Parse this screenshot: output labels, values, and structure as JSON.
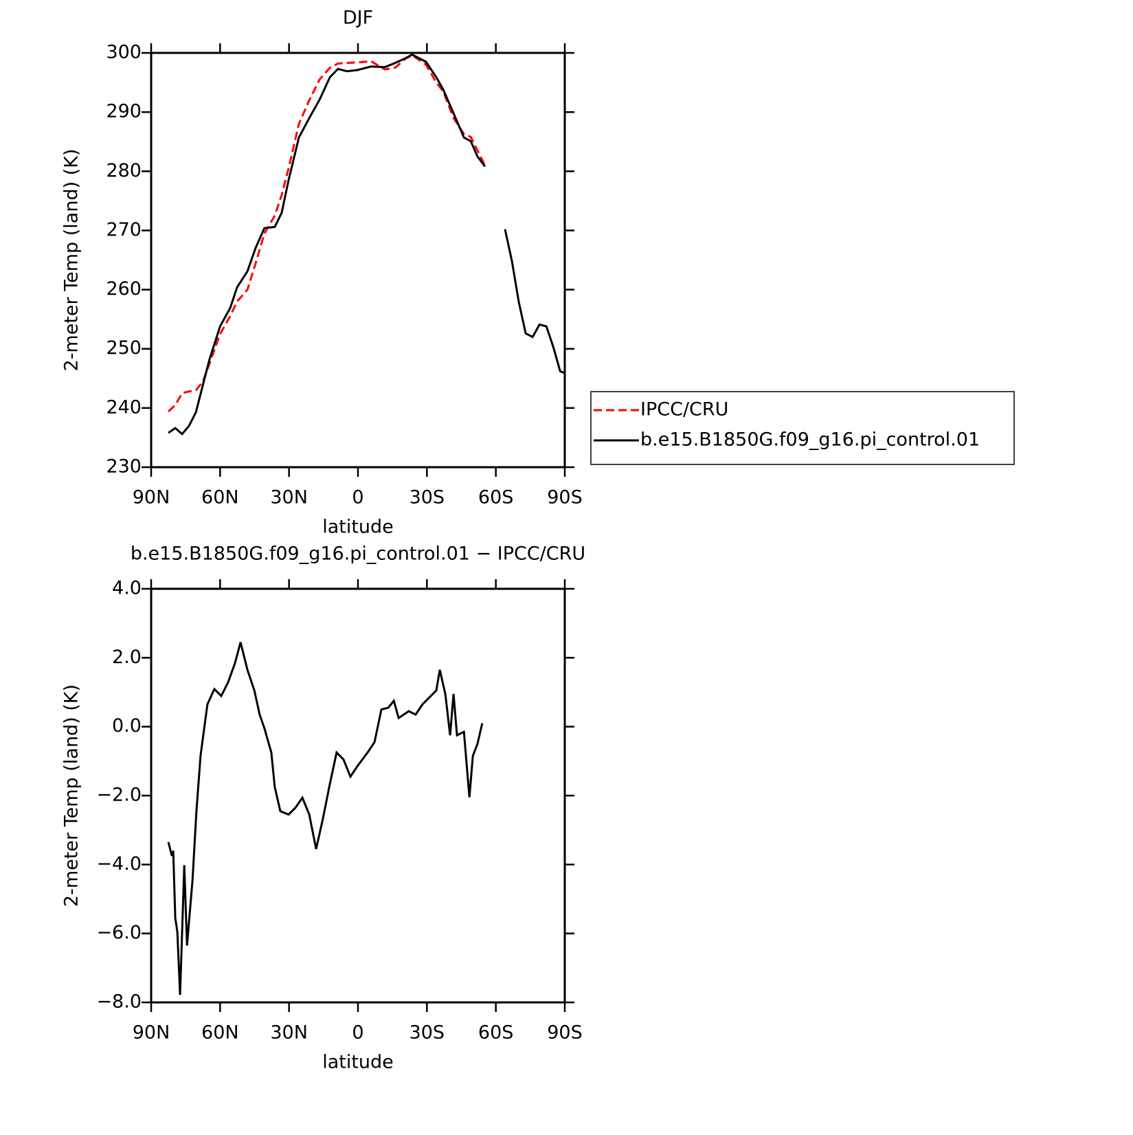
{
  "chart_data": [
    {
      "type": "line",
      "title": "DJF",
      "x_label": "latitude",
      "y_label": "2-meter Temp (land) (K)",
      "x": [
        82.5,
        79.5,
        76.5,
        73.5,
        70.5,
        67.5,
        64.6,
        60,
        55.6,
        52.6,
        48.1,
        44.5,
        40.7,
        36.2,
        33.2,
        30.2,
        25.7,
        21.2,
        16.7,
        12.2,
        8.7,
        4.8,
        0.3,
        -5.7,
        -11.7,
        -16.2,
        -20.6,
        -23.6,
        -29.6,
        -34.1,
        -37.1,
        -41.6,
        -46.1,
        -49.1,
        -52,
        -55.3,
        -60,
        -64,
        -67,
        -70,
        -73,
        -76,
        -79,
        -82,
        -85,
        -88,
        -90
      ],
      "series": [
        {
          "name": "IPCC/CRU",
          "color": "#ff0000",
          "line_style": "dashed",
          "values": [
            239.4,
            240.5,
            242.5,
            242.8,
            243.0,
            244.5,
            247.5,
            252.5,
            255.5,
            258,
            260,
            264.5,
            269.5,
            272.5,
            276,
            280.5,
            288,
            292,
            295.5,
            297.5,
            298.2,
            298.3,
            298.4,
            298.6,
            297.2,
            297.5,
            299.0,
            299.6,
            298.0,
            295.0,
            293.5,
            289.0,
            286.3,
            285.8,
            283.5,
            281.0,
            null,
            null,
            null,
            null,
            null,
            null,
            null,
            null,
            null,
            null,
            null
          ]
        },
        {
          "name": "b.e15.B1850G.f09_g16.pi_control.01",
          "color": "#000000",
          "line_style": "solid",
          "values": [
            235.8,
            236.6,
            235.6,
            237,
            239.3,
            243.9,
            248.2,
            253.8,
            256.9,
            260.4,
            263.1,
            267.1,
            270.4,
            270.6,
            273,
            278.5,
            285.7,
            289,
            292.1,
            295.9,
            297.3,
            296.9,
            297.1,
            297.7,
            297.6,
            298.3,
            299.1,
            299.7,
            298.5,
            295.9,
            293.8,
            289.8,
            285.7,
            285.1,
            282.5,
            280.8,
            null,
            270.2,
            264.8,
            257.9,
            252.6,
            252,
            254.1,
            253.8,
            250.3,
            246.2,
            245.9
          ]
        }
      ],
      "xlim": [
        90,
        -90
      ],
      "xticks": [
        {
          "value": 90,
          "label": "90N"
        },
        {
          "value": 60,
          "label": "60N"
        },
        {
          "value": 30,
          "label": "30N"
        },
        0,
        {
          "value": -30,
          "label": "30S"
        },
        {
          "value": -60,
          "label": "60S"
        },
        {
          "value": -90,
          "label": "90S"
        }
      ],
      "ylim": [
        230,
        300
      ],
      "yticks": [
        230,
        240,
        250,
        260,
        270,
        280,
        290,
        300
      ],
      "legend": "outside-right"
    },
    {
      "type": "line",
      "title": "b.e15.B1850G.f09_g16.pi_control.01 − IPCC/CRU",
      "x_label": "latitude",
      "y_label": "2-meter Temp (land) (K)",
      "x": [
        82.5,
        81,
        80.4,
        79.5,
        78.6,
        77.4,
        75.6,
        74.4,
        72,
        70.3,
        68.5,
        65.5,
        62.5,
        59.5,
        56.5,
        53.5,
        51.1,
        48.1,
        45.1,
        42.8,
        40.7,
        37.7,
        36.2,
        33.8,
        30.2,
        27.2,
        24.2,
        21.2,
        18.2,
        15.2,
        12.2,
        9.3,
        6.3,
        3.3,
        0.3,
        -4.2,
        -7.2,
        -10.2,
        -13.2,
        -15.6,
        -17.7,
        -22.1,
        -25.1,
        -28.1,
        -31.1,
        -34.1,
        -35.6,
        -38,
        -40.1,
        -41.6,
        -43.1,
        -46.1,
        -48.5,
        -50,
        -52,
        -54.1
      ],
      "series": [
        {
          "name": "b.e15.B1850G.f09_g16.pi_control.01 − IPCC/CRU",
          "color": "#000000",
          "line_style": "solid",
          "values": [
            -3.35,
            -3.75,
            -3.6,
            -5.55,
            -5.95,
            -7.78,
            -4.02,
            -6.35,
            -4.45,
            -2.45,
            -0.84,
            0.65,
            1.09,
            0.89,
            1.29,
            1.85,
            2.45,
            1.65,
            1.05,
            0.35,
            -0.05,
            -0.75,
            -1.75,
            -2.45,
            -2.55,
            -2.35,
            -2.06,
            -2.55,
            -3.55,
            -2.65,
            -1.65,
            -0.75,
            -0.95,
            -1.45,
            -1.15,
            -0.75,
            -0.45,
            0.5,
            0.55,
            0.75,
            0.25,
            0.45,
            0.35,
            0.65,
            0.85,
            1.05,
            1.65,
            0.95,
            -0.25,
            0.95,
            -0.25,
            -0.15,
            -2.05,
            -0.85,
            -0.5,
            0.1
          ]
        }
      ],
      "xlim": [
        90,
        -90
      ],
      "xticks": [
        {
          "value": 90,
          "label": "90N"
        },
        {
          "value": 60,
          "label": "60N"
        },
        {
          "value": 30,
          "label": "30N"
        },
        0,
        {
          "value": -30,
          "label": "30S"
        },
        {
          "value": -60,
          "label": "60S"
        },
        {
          "value": -90,
          "label": "90S"
        }
      ],
      "ylim": [
        -8,
        4
      ],
      "yticks": [
        {
          "value": -8,
          "label": "−8.0"
        },
        {
          "value": -6,
          "label": "−6.0"
        },
        {
          "value": -4,
          "label": "−4.0"
        },
        {
          "value": -2,
          "label": "−2.0"
        },
        {
          "value": 0,
          "label": "0.0"
        },
        {
          "value": 2,
          "label": "2.0"
        },
        {
          "value": 4,
          "label": "4.0"
        }
      ]
    }
  ]
}
